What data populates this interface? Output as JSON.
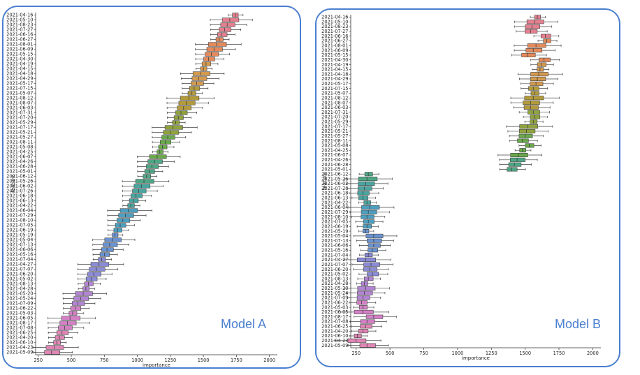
{
  "chart_data": [
    {
      "type": "box",
      "panel_label": "Model A",
      "xlabel": "importance",
      "ylabel": "feature",
      "xlim": [
        230,
        2060
      ],
      "xticks": [
        250,
        500,
        750,
        1000,
        1250,
        1500,
        1750,
        2000
      ],
      "features": [
        "2021-04-16",
        "2021-05-10",
        "2021-08-23",
        "2021-07-27",
        "2021-06-16",
        "2021-06-27",
        "2021-08-01",
        "2021-06-09",
        "2021-05-15",
        "2021-04-30",
        "2021-04-19",
        "2021-04-15",
        "2021-04-18",
        "2021-04-29",
        "2021-05-17",
        "2021-07-15",
        "2021-05-07",
        "2021-08-12",
        "2021-08-07",
        "2021-06-03",
        "2021-07-31",
        "2021-07-20",
        "2021-05-29",
        "2021-07-17",
        "2021-05-21",
        "2021-05-27",
        "2021-08-11",
        "2021-05-08",
        "2021-04-25",
        "2021-06-07",
        "2021-04-26",
        "2021-06-28",
        "2021-05-01",
        "2021-06-12",
        "2021-05-26",
        "2021-06-02",
        "2021-07-26",
        "2021-06-18",
        "2021-06-13",
        "2021-04-22",
        "2021-06-04",
        "2021-07-29",
        "2021-08-10",
        "2021-07-05",
        "2021-06-19",
        "2021-05-19",
        "2021-05-04",
        "2021-07-13",
        "2021-06-06",
        "2021-05-16",
        "2021-07-04",
        "2021-04-27",
        "2021-07-07",
        "2021-06-20",
        "2021-05-02",
        "2021-08-13",
        "2021-04-28",
        "2021-05-20",
        "2021-05-24",
        "2021-07-09",
        "2021-06-22",
        "2021-05-03",
        "2021-06-05",
        "2021-08-17",
        "2021-07-08",
        "2021-06-25",
        "2021-04-20",
        "2021-06-10",
        "2021-04-23",
        "2021-05-09"
      ],
      "medians": [
        1740,
        1700,
        1680,
        1660,
        1640,
        1620,
        1600,
        1580,
        1560,
        1540,
        1520,
        1500,
        1480,
        1465,
        1450,
        1430,
        1410,
        1390,
        1370,
        1350,
        1330,
        1310,
        1290,
        1270,
        1250,
        1230,
        1210,
        1190,
        1170,
        1150,
        1130,
        1110,
        1090,
        1070,
        1050,
        1030,
        1010,
        990,
        970,
        950,
        930,
        910,
        890,
        870,
        850,
        830,
        810,
        790,
        770,
        750,
        730,
        710,
        690,
        670,
        650,
        630,
        610,
        590,
        570,
        550,
        530,
        510,
        490,
        470,
        450,
        430,
        410,
        390,
        370,
        350
      ]
    },
    {
      "type": "box",
      "panel_label": "Model B",
      "xlabel": "importance",
      "ylabel": "feature",
      "xlim": [
        210,
        2060
      ],
      "xticks": [
        250,
        500,
        750,
        1000,
        1250,
        1500,
        1750,
        2000
      ],
      "features": [
        "2021-04-16",
        "2021-05-10",
        "2021-08-23",
        "2021-07-27",
        "2021-06-16",
        "2021-06-27",
        "2021-08-01",
        "2021-06-09",
        "2021-05-15",
        "2021-04-30",
        "2021-04-19",
        "2021-04-15",
        "2021-04-18",
        "2021-04-29",
        "2021-05-17",
        "2021-07-15",
        "2021-05-07",
        "2021-08-12",
        "2021-08-07",
        "2021-06-03",
        "2021-07-31",
        "2021-07-20",
        "2021-05-29",
        "2021-07-17",
        "2021-05-21",
        "2021-05-27",
        "2021-08-11",
        "2021-05-08",
        "2021-04-25",
        "2021-06-07",
        "2021-04-26",
        "2021-06-28",
        "2021-05-01",
        "2021-06-12",
        "2021-05-26",
        "2021-06-02",
        "2021-07-26",
        "2021-06-18",
        "2021-06-13",
        "2021-04-22",
        "2021-06-04",
        "2021-07-29",
        "2021-08-10",
        "2021-07-05",
        "2021-06-19",
        "2021-05-19",
        "2021-05-04",
        "2021-07-13",
        "2021-06-06",
        "2021-05-16",
        "2021-07-04",
        "2021-04-27",
        "2021-07-07",
        "2021-06-20",
        "2021-05-02",
        "2021-08-13",
        "2021-04-28",
        "2021-05-20",
        "2021-05-24",
        "2021-07-09",
        "2021-06-22",
        "2021-05-03",
        "2021-06-05",
        "2021-08-17",
        "2021-07-08",
        "2021-06-25",
        "2021-04-20",
        "2021-06-10",
        "2021-04-23",
        "2021-05-09"
      ],
      "medians": [
        1590,
        1570,
        1550,
        1540,
        1650,
        1660,
        1580,
        1560,
        1520,
        1640,
        1620,
        1610,
        1600,
        1590,
        1580,
        1560,
        1570,
        1560,
        1540,
        1540,
        1560,
        1570,
        1560,
        1520,
        1510,
        1500,
        1480,
        1530,
        1480,
        1450,
        1440,
        1420,
        1400,
        340,
        330,
        320,
        310,
        300,
        300,
        330,
        350,
        340,
        330,
        340,
        330,
        320,
        380,
        380,
        380,
        370,
        340,
        320,
        360,
        350,
        370,
        340,
        310,
        320,
        310,
        300,
        290,
        300,
        300,
        380,
        330,
        320,
        300,
        260,
        250,
        330
      ]
    },
    {
      "palette": [
        "#e57f8f",
        "#e58a5a",
        "#d49a4e",
        "#b39a3a",
        "#8fa33c",
        "#6aa94c",
        "#4ea784",
        "#4aa5a0",
        "#4d9fc0",
        "#6a93d2",
        "#8b8bd8",
        "#b384d4",
        "#d480c6",
        "#e085b5"
      ]
    }
  ]
}
